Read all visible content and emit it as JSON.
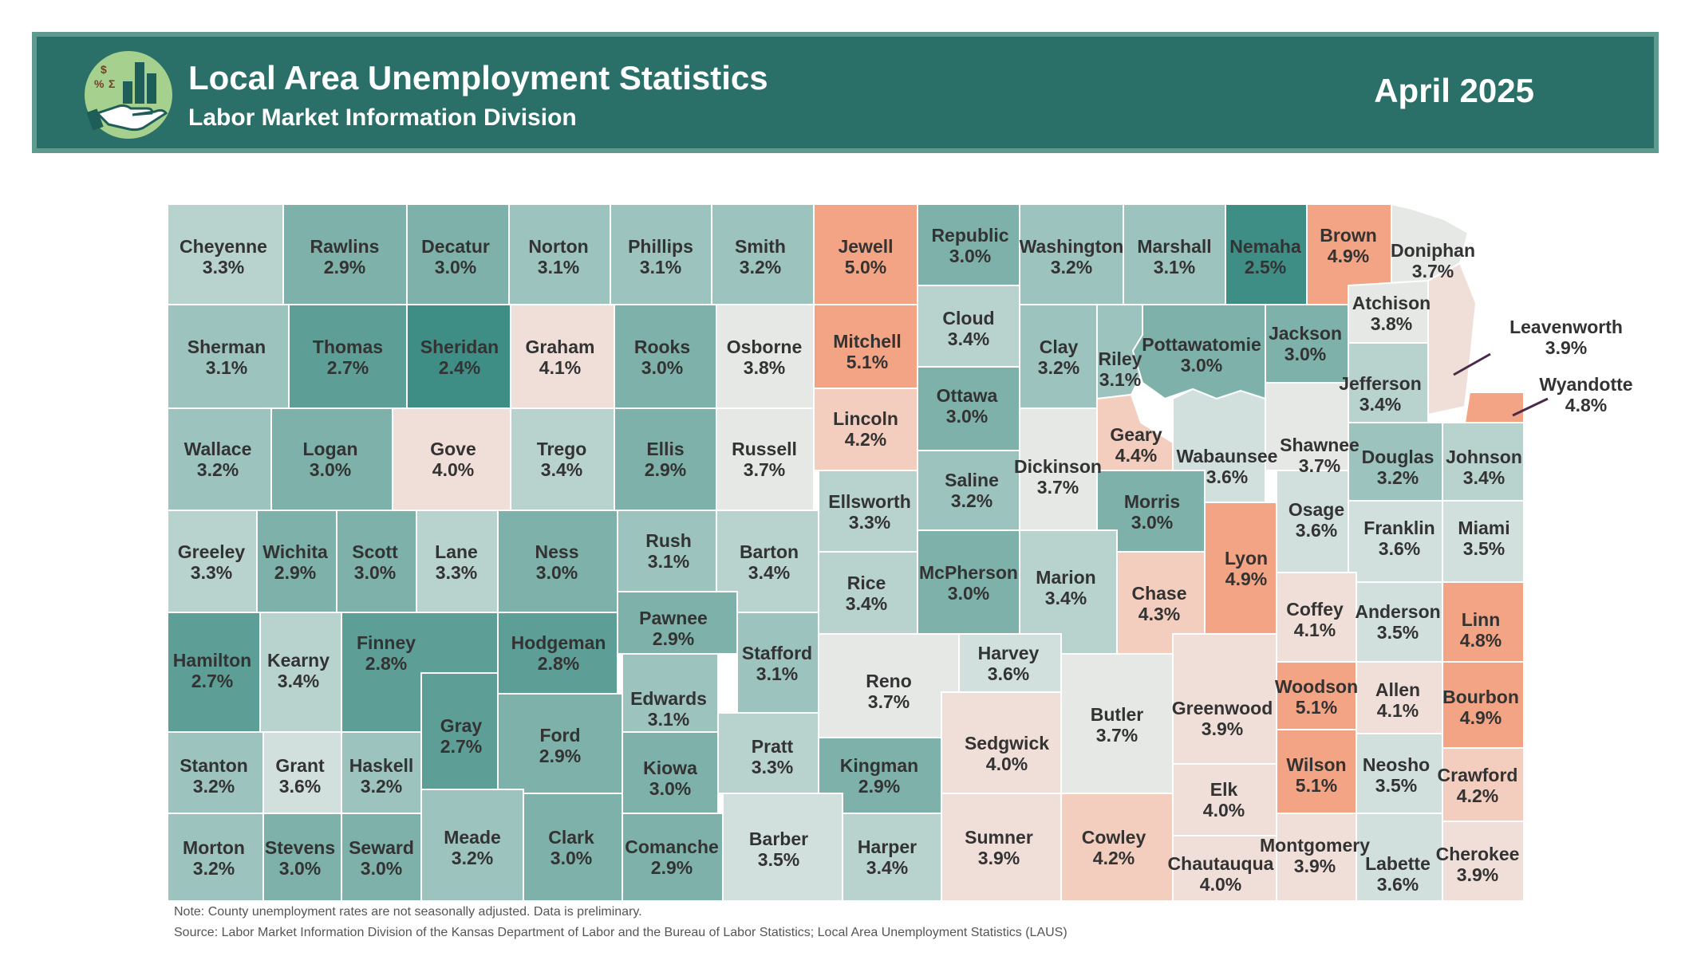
{
  "header": {
    "title": "Local Area Unemployment Statistics",
    "subtitle": "Labor Market Information Division",
    "period": "April 2025",
    "logo_icon": "hand-chart-dollar-percent-sigma-icon",
    "logo_symbols": [
      "$",
      "%",
      "Σ"
    ]
  },
  "colors": {
    "banner": "#2a7068",
    "banner_border": "#5f9a8e",
    "rate_2_4_to_2_5": "#3f8e86",
    "rate_2_7_to_2_8": "#5d9e96",
    "rate_2_9_to_3_0": "#7db1aa",
    "rate_3_1_to_3_2": "#9cc3be",
    "rate_3_3_to_3_4": "#b8d2ce",
    "rate_3_5_to_3_6": "#d1e0dd",
    "rate_3_7_to_3_8": "#e6e8e6",
    "rate_3_9_to_4_1": "#f0dfd8",
    "rate_4_2_to_4_4": "#f3cdbd",
    "rate_4_8_to_5_1": "#f3a484"
  },
  "counties": [
    {
      "name": "Cheyenne",
      "rate": "3.3%"
    },
    {
      "name": "Rawlins",
      "rate": "2.9%"
    },
    {
      "name": "Decatur",
      "rate": "3.0%"
    },
    {
      "name": "Norton",
      "rate": "3.1%"
    },
    {
      "name": "Phillips",
      "rate": "3.1%"
    },
    {
      "name": "Smith",
      "rate": "3.2%"
    },
    {
      "name": "Jewell",
      "rate": "5.0%"
    },
    {
      "name": "Republic",
      "rate": "3.0%"
    },
    {
      "name": "Washington",
      "rate": "3.2%"
    },
    {
      "name": "Marshall",
      "rate": "3.1%"
    },
    {
      "name": "Nemaha",
      "rate": "2.5%"
    },
    {
      "name": "Brown",
      "rate": "4.9%"
    },
    {
      "name": "Doniphan",
      "rate": "3.7%"
    },
    {
      "name": "Sherman",
      "rate": "3.1%"
    },
    {
      "name": "Thomas",
      "rate": "2.7%"
    },
    {
      "name": "Sheridan",
      "rate": "2.4%"
    },
    {
      "name": "Graham",
      "rate": "4.1%"
    },
    {
      "name": "Rooks",
      "rate": "3.0%"
    },
    {
      "name": "Osborne",
      "rate": "3.8%"
    },
    {
      "name": "Mitchell",
      "rate": "5.1%"
    },
    {
      "name": "Cloud",
      "rate": "3.4%"
    },
    {
      "name": "Clay",
      "rate": "3.2%"
    },
    {
      "name": "Riley",
      "rate": "3.1%"
    },
    {
      "name": "Pottawatomie",
      "rate": "3.0%"
    },
    {
      "name": "Jackson",
      "rate": "3.0%"
    },
    {
      "name": "Atchison",
      "rate": "3.8%"
    },
    {
      "name": "Leavenworth",
      "rate": "3.9%"
    },
    {
      "name": "Wallace",
      "rate": "3.2%"
    },
    {
      "name": "Logan",
      "rate": "3.0%"
    },
    {
      "name": "Gove",
      "rate": "4.0%"
    },
    {
      "name": "Trego",
      "rate": "3.4%"
    },
    {
      "name": "Ellis",
      "rate": "2.9%"
    },
    {
      "name": "Russell",
      "rate": "3.7%"
    },
    {
      "name": "Lincoln",
      "rate": "4.2%"
    },
    {
      "name": "Ottawa",
      "rate": "3.0%"
    },
    {
      "name": "Dickinson",
      "rate": "3.7%"
    },
    {
      "name": "Geary",
      "rate": "4.4%"
    },
    {
      "name": "Wabaunsee",
      "rate": "3.6%"
    },
    {
      "name": "Shawnee",
      "rate": "3.7%"
    },
    {
      "name": "Jefferson",
      "rate": "3.4%"
    },
    {
      "name": "Wyandotte",
      "rate": "4.8%"
    },
    {
      "name": "Douglas",
      "rate": "3.2%"
    },
    {
      "name": "Johnson",
      "rate": "3.4%"
    },
    {
      "name": "Greeley",
      "rate": "3.3%"
    },
    {
      "name": "Wichita",
      "rate": "2.9%"
    },
    {
      "name": "Scott",
      "rate": "3.0%"
    },
    {
      "name": "Lane",
      "rate": "3.3%"
    },
    {
      "name": "Ness",
      "rate": "3.0%"
    },
    {
      "name": "Rush",
      "rate": "3.1%"
    },
    {
      "name": "Barton",
      "rate": "3.4%"
    },
    {
      "name": "Ellsworth",
      "rate": "3.3%"
    },
    {
      "name": "Saline",
      "rate": "3.2%"
    },
    {
      "name": "Morris",
      "rate": "3.0%"
    },
    {
      "name": "Lyon",
      "rate": "4.9%"
    },
    {
      "name": "Osage",
      "rate": "3.6%"
    },
    {
      "name": "Franklin",
      "rate": "3.6%"
    },
    {
      "name": "Miami",
      "rate": "3.5%"
    },
    {
      "name": "Hamilton",
      "rate": "2.7%"
    },
    {
      "name": "Kearny",
      "rate": "3.4%"
    },
    {
      "name": "Finney",
      "rate": "2.8%"
    },
    {
      "name": "Hodgeman",
      "rate": "2.8%"
    },
    {
      "name": "Pawnee",
      "rate": "2.9%"
    },
    {
      "name": "Stafford",
      "rate": "3.1%"
    },
    {
      "name": "Rice",
      "rate": "3.4%"
    },
    {
      "name": "McPherson",
      "rate": "3.0%"
    },
    {
      "name": "Marion",
      "rate": "3.4%"
    },
    {
      "name": "Chase",
      "rate": "4.3%"
    },
    {
      "name": "Coffey",
      "rate": "4.1%"
    },
    {
      "name": "Anderson",
      "rate": "3.5%"
    },
    {
      "name": "Linn",
      "rate": "4.8%"
    },
    {
      "name": "Gray",
      "rate": "2.7%"
    },
    {
      "name": "Ford",
      "rate": "2.9%"
    },
    {
      "name": "Edwards",
      "rate": "3.1%"
    },
    {
      "name": "Reno",
      "rate": "3.7%"
    },
    {
      "name": "Harvey",
      "rate": "3.6%"
    },
    {
      "name": "Butler",
      "rate": "3.7%"
    },
    {
      "name": "Greenwood",
      "rate": "3.9%"
    },
    {
      "name": "Woodson",
      "rate": "5.1%"
    },
    {
      "name": "Allen",
      "rate": "4.1%"
    },
    {
      "name": "Bourbon",
      "rate": "4.9%"
    },
    {
      "name": "Stanton",
      "rate": "3.2%"
    },
    {
      "name": "Grant",
      "rate": "3.6%"
    },
    {
      "name": "Haskell",
      "rate": "3.2%"
    },
    {
      "name": "Kiowa",
      "rate": "3.0%"
    },
    {
      "name": "Pratt",
      "rate": "3.3%"
    },
    {
      "name": "Kingman",
      "rate": "2.9%"
    },
    {
      "name": "Sedgwick",
      "rate": "4.0%"
    },
    {
      "name": "Elk",
      "rate": "4.0%"
    },
    {
      "name": "Wilson",
      "rate": "5.1%"
    },
    {
      "name": "Neosho",
      "rate": "3.5%"
    },
    {
      "name": "Crawford",
      "rate": "4.2%"
    },
    {
      "name": "Morton",
      "rate": "3.2%"
    },
    {
      "name": "Stevens",
      "rate": "3.0%"
    },
    {
      "name": "Seward",
      "rate": "3.0%"
    },
    {
      "name": "Meade",
      "rate": "3.2%"
    },
    {
      "name": "Clark",
      "rate": "3.0%"
    },
    {
      "name": "Comanche",
      "rate": "2.9%"
    },
    {
      "name": "Barber",
      "rate": "3.5%"
    },
    {
      "name": "Harper",
      "rate": "3.4%"
    },
    {
      "name": "Sumner",
      "rate": "3.9%"
    },
    {
      "name": "Cowley",
      "rate": "4.2%"
    },
    {
      "name": "Chautauqua",
      "rate": "4.0%"
    },
    {
      "name": "Montgomery",
      "rate": "3.9%"
    },
    {
      "name": "Labette",
      "rate": "3.6%"
    },
    {
      "name": "Cherokee",
      "rate": "3.9%"
    }
  ],
  "notes": {
    "note": "Note: County unemployment rates are not seasonally adjusted. Data is preliminary.",
    "source": "Source: Labor Market Information Division of the Kansas Department of Labor and the Bureau of Labor Statistics; Local Area Unemployment Statistics (LAUS)"
  }
}
